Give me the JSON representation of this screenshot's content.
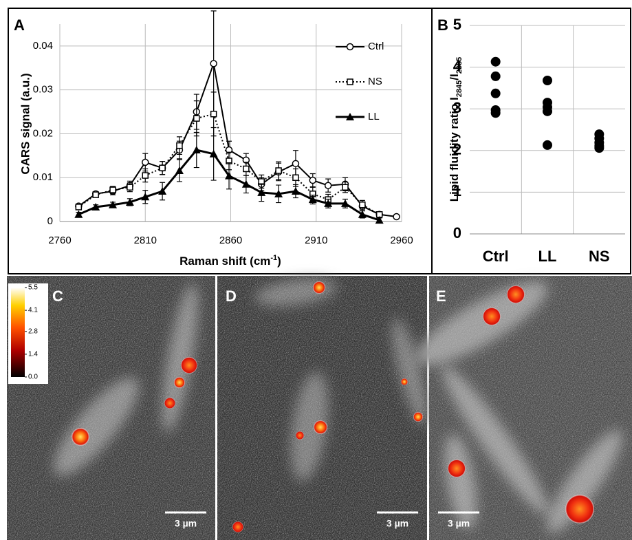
{
  "chart_data": [
    {
      "type": "line",
      "label": "A",
      "xlabel": [
        "Raman shift (cm",
        "-1",
        ")"
      ],
      "ylabel": "CARS signal (a.u.)",
      "x": [
        2771,
        2781,
        2791,
        2801,
        2810,
        2820,
        2830,
        2840,
        2850,
        2859,
        2869,
        2878,
        2888,
        2898,
        2908,
        2917,
        2927,
        2937,
        2947,
        2957
      ],
      "xlim": [
        2760,
        2960
      ],
      "xticks": [
        2760,
        2810,
        2860,
        2910,
        2960
      ],
      "ylim": [
        0,
        0.045
      ],
      "yticks": [
        0,
        0.01,
        0.02,
        0.03,
        0.04
      ],
      "grid": true,
      "series": [
        {
          "name": "Ctrl",
          "color": "#000000",
          "marker": "circle",
          "dash": "solid",
          "values": [
            0.0035,
            0.0063,
            0.0069,
            0.0082,
            0.0135,
            0.0122,
            0.0163,
            0.025,
            0.036,
            0.0163,
            0.014,
            0.0085,
            0.0113,
            0.0132,
            0.0094,
            0.0082,
            0.0085,
            0.0035,
            0.0016,
            0.0011
          ],
          "errors": [
            0.0005,
            0.0005,
            0.0008,
            0.001,
            0.002,
            0.0015,
            0.002,
            0.004,
            0.012,
            0.002,
            0.0015,
            0.0015,
            0.002,
            0.003,
            0.0015,
            0.0015,
            0.0015,
            0.001,
            0.0005,
            0.0003
          ]
        },
        {
          "name": "NS",
          "color": "#000000",
          "marker": "square",
          "dash": "dotted",
          "values": [
            0.0033,
            0.0061,
            0.0072,
            0.0078,
            0.0105,
            0.0122,
            0.0173,
            0.0235,
            0.0245,
            0.0138,
            0.012,
            0.0091,
            0.0116,
            0.01,
            0.0063,
            0.005,
            0.0078,
            0.0038,
            0.0016,
            null
          ],
          "errors": [
            0.0005,
            0.0005,
            0.0008,
            0.001,
            0.0015,
            0.0015,
            0.002,
            0.004,
            0.005,
            0.002,
            0.0015,
            0.0015,
            0.002,
            0.002,
            0.0015,
            0.0012,
            0.0012,
            0.001,
            0.0005,
            null
          ]
        },
        {
          "name": "LL",
          "color": "#000000",
          "marker": "triangle",
          "dash": "thick",
          "values": [
            0.0016,
            0.0033,
            0.0038,
            0.0044,
            0.0056,
            0.0069,
            0.0116,
            0.0163,
            0.0154,
            0.0104,
            0.0085,
            0.0066,
            0.0063,
            0.0069,
            0.005,
            0.0041,
            0.0041,
            0.0016,
            0.0003,
            null
          ],
          "errors": [
            0.0005,
            0.0005,
            0.0006,
            0.0008,
            0.0015,
            0.002,
            0.0025,
            0.004,
            0.006,
            0.003,
            0.002,
            0.002,
            0.002,
            0.0015,
            0.001,
            0.001,
            0.001,
            0.0008,
            0.0005,
            null
          ]
        }
      ]
    },
    {
      "type": "strip",
      "label": "B",
      "ylabel": [
        "Lipid fluidity ratio I",
        "2845",
        "/I",
        "2885"
      ],
      "categories": [
        "Ctrl",
        "LL",
        "NS"
      ],
      "values": [
        [
          4.13,
          3.78,
          3.37,
          2.97,
          2.9
        ],
        [
          3.68,
          3.15,
          3.04,
          2.94,
          2.13
        ],
        [
          2.39,
          2.29,
          2.19,
          2.11,
          2.06
        ]
      ],
      "color": "#000000",
      "ylim": [
        0,
        5
      ],
      "yticks": [
        0,
        1,
        2,
        3,
        4,
        5
      ],
      "grid": true
    }
  ],
  "colorbar": {
    "lim": [
      0,
      5.5
    ],
    "ticks": [
      5.5,
      4.1,
      2.8,
      1.4,
      {
        "value": 0,
        "label": "0.0"
      }
    ]
  },
  "panels": [
    {
      "label": "C",
      "scale_bar": "3 µm"
    },
    {
      "label": "D",
      "scale_bar": "3 µm"
    },
    {
      "label": "E",
      "scale_bar": "3 µm"
    }
  ]
}
